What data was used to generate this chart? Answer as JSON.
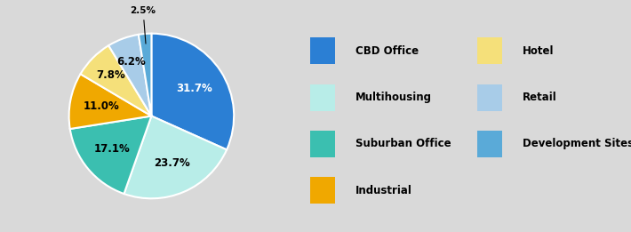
{
  "labels": [
    "CBD Office",
    "Multihousing",
    "Suburban Office",
    "Industrial",
    "Hotel",
    "Retail",
    "Development Sites"
  ],
  "values": [
    31.7,
    23.7,
    17.1,
    11.0,
    7.8,
    6.2,
    2.5
  ],
  "colors": [
    "#2B7FD4",
    "#B8EDE8",
    "#3BBFB0",
    "#F0A800",
    "#F5E07A",
    "#A8CCE8",
    "#5AAAD8"
  ],
  "label_colors": [
    "white",
    "black",
    "black",
    "black",
    "black",
    "black",
    "black"
  ],
  "background_color": "#D9D9D9",
  "legend_labels_col1": [
    "CBD Office",
    "Multihousing",
    "Suburban Office",
    "Industrial"
  ],
  "legend_labels_col2": [
    "Hotel",
    "Retail",
    "Development Sites"
  ],
  "legend_colors_col1": [
    "#2B7FD4",
    "#B8EDE8",
    "#3BBFB0",
    "#F0A800"
  ],
  "legend_colors_col2": [
    "#F5E07A",
    "#A8CCE8",
    "#5AAAD8"
  ]
}
